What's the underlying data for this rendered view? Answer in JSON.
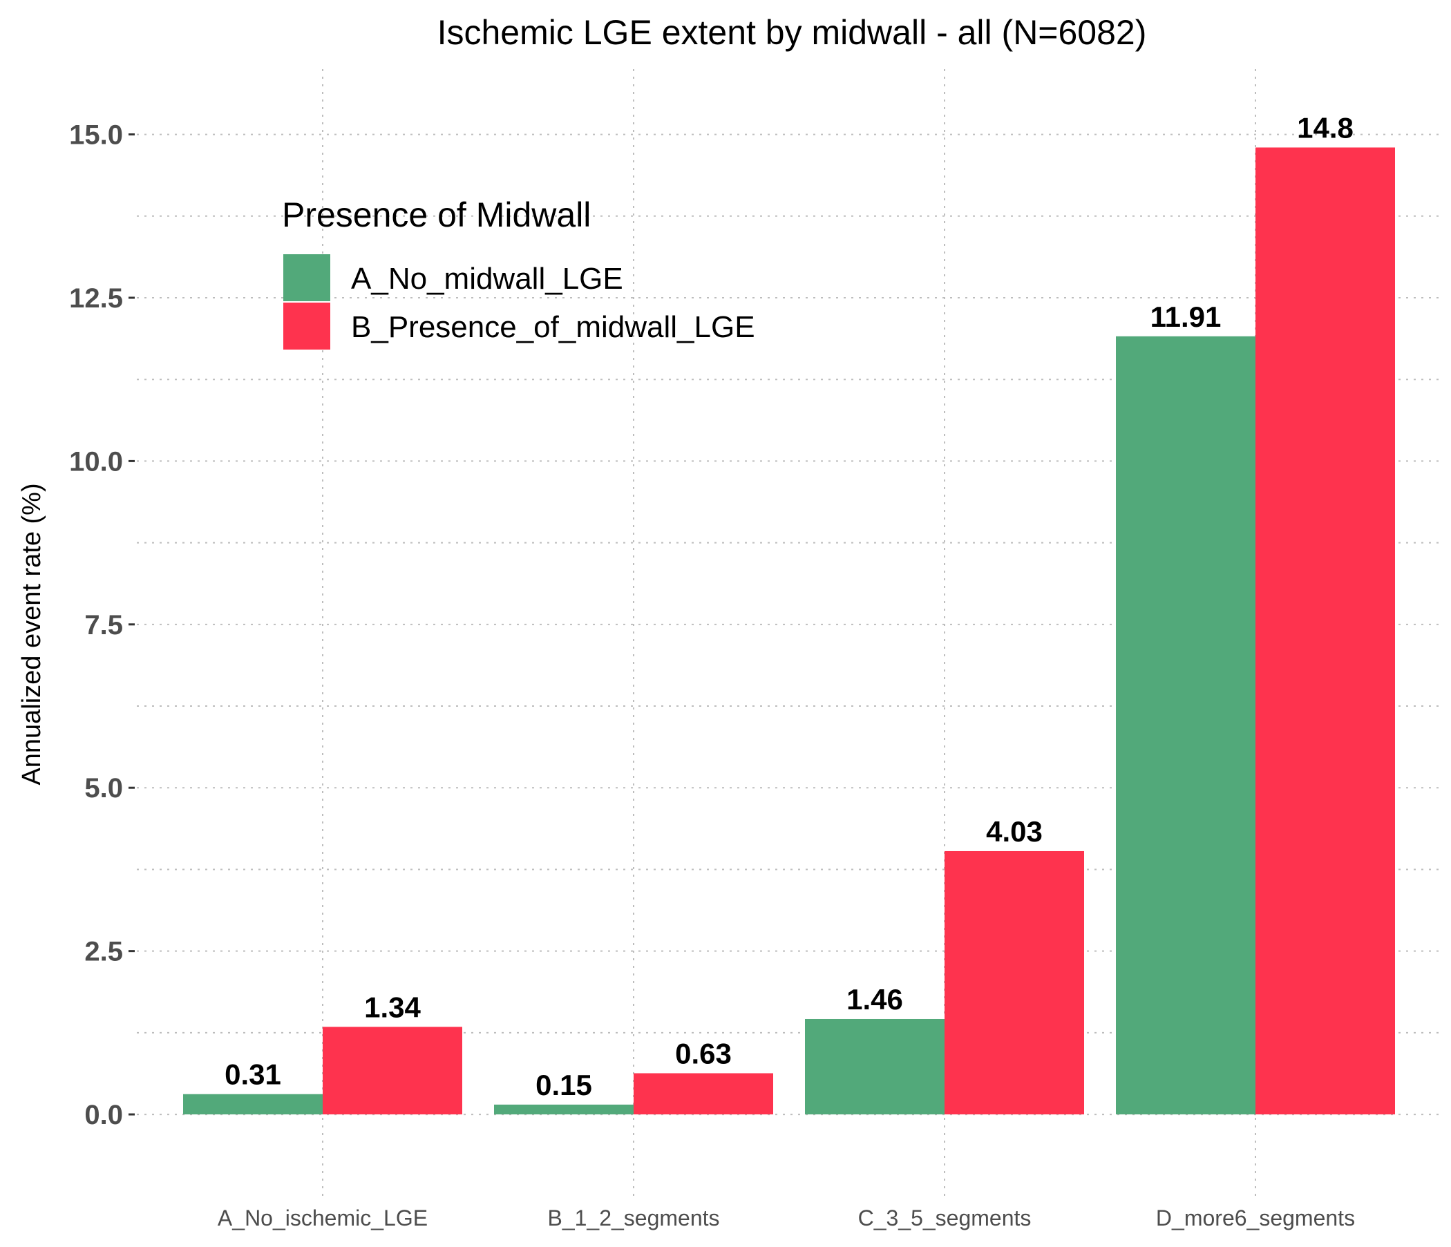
{
  "chart_data": {
    "type": "bar",
    "title": "Ischemic LGE extent by midwall - all (N=6082)",
    "xlabel": "",
    "ylabel": "Annualized event rate (%)",
    "ylim": [
      -1.3,
      16.0
    ],
    "yticks": [
      0.0,
      2.5,
      5.0,
      7.5,
      10.0,
      12.5,
      15.0
    ],
    "ytick_labels": [
      "0.0",
      "2.5",
      "5.0",
      "7.5",
      "10.0",
      "12.5",
      "15.0"
    ],
    "categories": [
      "A_No_ischemic_LGE",
      "B_1_2_segments",
      "C_3_5_segments",
      "D_more6_segments"
    ],
    "series": [
      {
        "name": "A_No_midwall_LGE",
        "color": "#52a97a",
        "values": [
          0.31,
          0.15,
          1.46,
          11.91
        ],
        "labels": [
          "0.31",
          "0.15",
          "1.46",
          "11.91"
        ]
      },
      {
        "name": "B_Presence_of_midwall_LGE",
        "color": "#fe334e",
        "values": [
          1.34,
          0.63,
          4.03,
          14.8
        ],
        "labels": [
          "1.34",
          "0.63",
          "4.03",
          "14.8"
        ]
      }
    ],
    "legend": {
      "title": "Presence of Midwall",
      "placement": "top-left"
    },
    "grid": true,
    "grid_style": "dotted"
  }
}
